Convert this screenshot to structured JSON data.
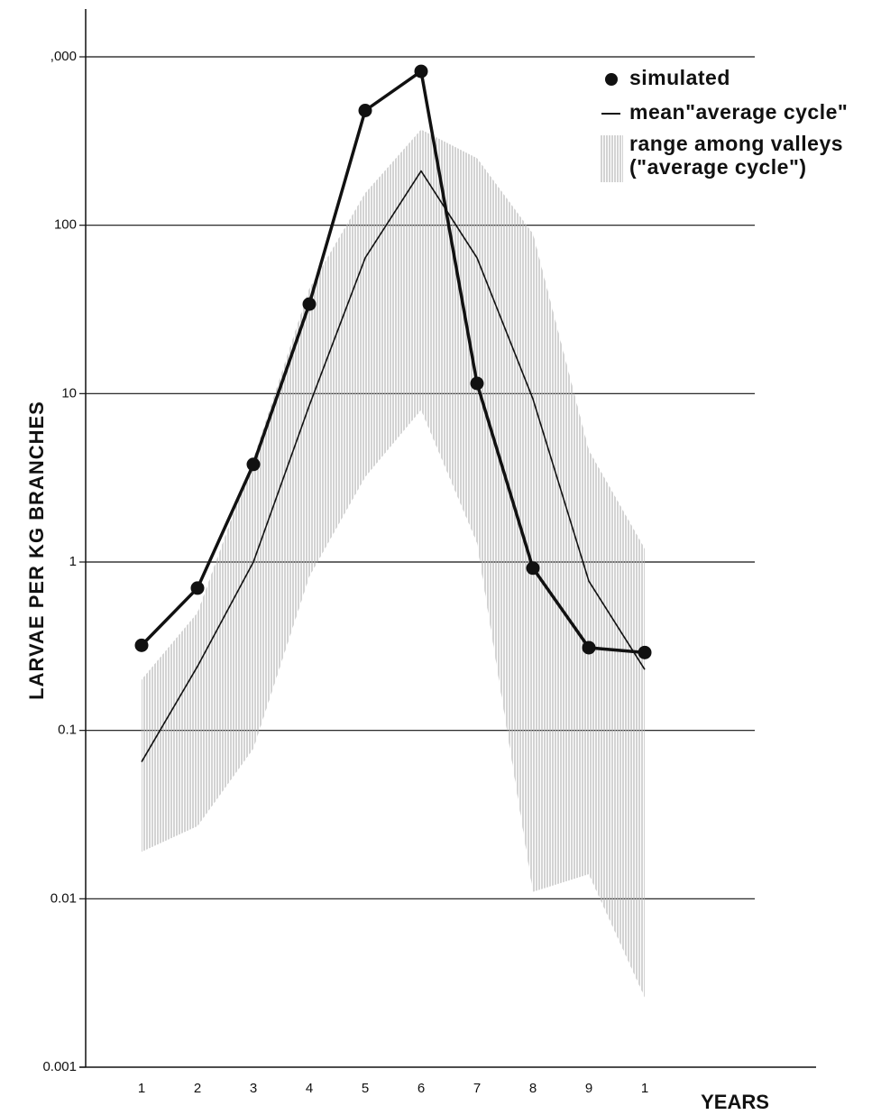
{
  "chart_data": {
    "type": "line",
    "y_label": "LARVAE PER KG BRANCHES",
    "x_label": "YEARS",
    "categories": [
      "1",
      "2",
      "3",
      "4",
      "5",
      "6",
      "7",
      "8",
      "9",
      "1"
    ],
    "ylim": [
      0.001,
      1000
    ],
    "yticks": [
      0.001,
      0.01,
      0.1,
      1,
      10,
      100,
      {
        "value": 1000,
        "label": ",000"
      }
    ],
    "log_scale": "y",
    "grid": true,
    "legend": "upper right",
    "series": [
      {
        "name": "simulated",
        "color": "#111111",
        "marker": "circle",
        "values": [
          0.32,
          0.7,
          3.8,
          34,
          480,
          820,
          11.5,
          0.92,
          0.31,
          0.29
        ]
      },
      {
        "name": "mean\"average cycle\"",
        "color": "#111111",
        "values": [
          0.065,
          0.24,
          1.0,
          8.5,
          64,
          210,
          64,
          9.3,
          0.77,
          0.23
        ]
      },
      {
        "name": "range among valleys (\"average cycle\")",
        "color": "#b5b5b5",
        "kind": "band",
        "upper": [
          0.2,
          0.5,
          4.1,
          42,
          155,
          370,
          250,
          89,
          4.6,
          1.2
        ],
        "lower": [
          0.019,
          0.027,
          0.078,
          0.82,
          3.2,
          8.0,
          1.3,
          0.011,
          0.014,
          0.0026
        ]
      }
    ]
  }
}
